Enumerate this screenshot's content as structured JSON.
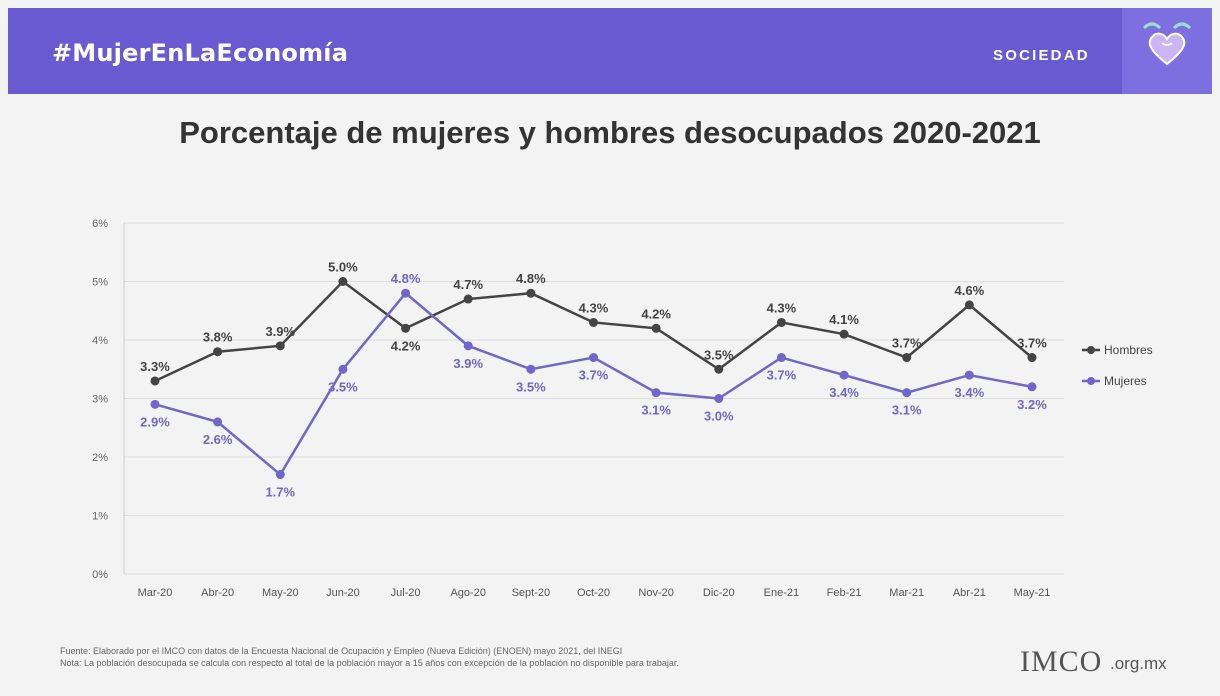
{
  "header": {
    "hashtag": "#MujerEnLaEconomía",
    "section": "SOCIEDAD",
    "colors": {
      "banner": "#6a5ad2",
      "badge": "#7d6fe0"
    }
  },
  "chart_data": {
    "type": "line",
    "title": "Porcentaje de mujeres y hombres desocupados 2020-2021",
    "categories": [
      "Mar-20",
      "Abr-20",
      "May-20",
      "Jun-20",
      "Jul-20",
      "Ago-20",
      "Sept-20",
      "Oct-20",
      "Nov-20",
      "Dic-20",
      "Ene-21",
      "Feb-21",
      "Mar-21",
      "Abr-21",
      "May-21"
    ],
    "y_ticks": [
      0,
      1,
      2,
      3,
      4,
      5,
      6
    ],
    "y_tick_labels": [
      "0%",
      "1%",
      "2%",
      "3%",
      "4%",
      "5%",
      "6%"
    ],
    "ylim": [
      0,
      6
    ],
    "grid": true,
    "legend_position": "right",
    "series": [
      {
        "name": "Hombres",
        "color": "#444444",
        "values": [
          3.3,
          3.8,
          3.9,
          5.0,
          4.2,
          4.7,
          4.8,
          4.3,
          4.2,
          3.5,
          4.3,
          4.1,
          3.7,
          4.6,
          3.7
        ],
        "labels": [
          "3.3%",
          "3.8%",
          "3.9%",
          "5.0%",
          "4.2%",
          "4.7%",
          "4.8%",
          "4.3%",
          "4.2%",
          "3.5%",
          "4.3%",
          "4.1%",
          "3.7%",
          "4.6%",
          "3.7%"
        ],
        "label_placement": [
          "above",
          "above",
          "above",
          "above",
          "below",
          "above",
          "above",
          "above",
          "above",
          "above",
          "above",
          "above",
          "above",
          "above",
          "above"
        ]
      },
      {
        "name": "Mujeres",
        "color": "#7066cc",
        "values": [
          2.9,
          2.6,
          1.7,
          3.5,
          4.8,
          3.9,
          3.5,
          3.7,
          3.1,
          3.0,
          3.7,
          3.4,
          3.1,
          3.4,
          3.2
        ],
        "labels": [
          "2.9%",
          "2.6%",
          "1.7%",
          "3.5%",
          "4.8%",
          "3.9%",
          "3.5%",
          "3.7%",
          "3.1%",
          "3.0%",
          "3.7%",
          "3.4%",
          "3.1%",
          "3.4%",
          "3.2%"
        ],
        "label_placement": [
          "below",
          "below",
          "below",
          "below",
          "above",
          "below",
          "below",
          "below",
          "below",
          "below",
          "below",
          "below",
          "below",
          "below",
          "below"
        ]
      }
    ]
  },
  "footer": {
    "source": "Fuente: Elaborado por el IMCO con datos de la Encuesta Nacional de Ocupación y Empleo (Nueva Edición) (ENOEN) mayo 2021, del INEGI",
    "note": "Nota: La población desocupada se calcula con respecto al total de la población mayor a 15 años con excepción de la población no disponible para trabajar.",
    "logo_text": "IMCO",
    "logo_domain": ".org.mx"
  }
}
